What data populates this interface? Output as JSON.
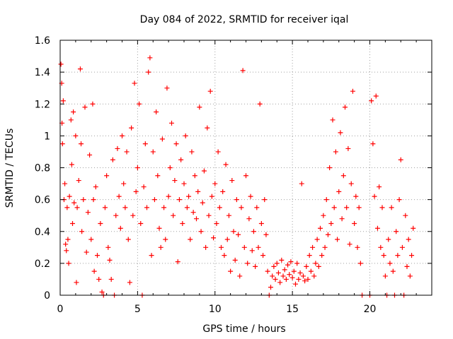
{
  "chart_data": {
    "type": "scatter",
    "title": "Day 084 of 2022, SRMTID for receiver iqal",
    "xlabel": "GPS time / hours",
    "ylabel": "SRMTID / TECUs",
    "xlim": [
      0,
      24
    ],
    "ylim": [
      0,
      1.6
    ],
    "grid": true,
    "marker": "+",
    "x_ticks": [
      0,
      5,
      10,
      15,
      20
    ],
    "x_tick_labels": [
      "0",
      "5",
      "10",
      "15",
      "20"
    ],
    "y_ticks": [
      0,
      0.2,
      0.4,
      0.6,
      0.8,
      1.0,
      1.2,
      1.4,
      1.6
    ],
    "y_tick_labels": [
      "0",
      "0.2",
      "0.4",
      "0.6",
      "0.8",
      "1",
      "1.2",
      "1.4",
      "1.6"
    ],
    "series": [
      {
        "name": "SRMTID",
        "color": "#ff0000",
        "points": [
          [
            0.05,
            1.45
          ],
          [
            0.1,
            1.33
          ],
          [
            0.12,
            1.08
          ],
          [
            0.15,
            0.95
          ],
          [
            0.2,
            1.22
          ],
          [
            0.25,
            0.6
          ],
          [
            0.3,
            0.7
          ],
          [
            0.35,
            0.32
          ],
          [
            0.4,
            0.28
          ],
          [
            0.45,
            0.55
          ],
          [
            0.5,
            0.35
          ],
          [
            0.55,
            0.2
          ],
          [
            0.6,
            0.62
          ],
          [
            0.7,
            1.1
          ],
          [
            0.75,
            0.82
          ],
          [
            0.8,
            0.45
          ],
          [
            0.85,
            1.15
          ],
          [
            0.9,
            0.58
          ],
          [
            1.0,
            1.0
          ],
          [
            1.05,
            0.08
          ],
          [
            1.1,
            0.55
          ],
          [
            1.2,
            0.72
          ],
          [
            1.3,
            1.42
          ],
          [
            1.35,
            0.95
          ],
          [
            1.4,
            0.4
          ],
          [
            1.5,
            0.6
          ],
          [
            1.6,
            1.18
          ],
          [
            1.7,
            0.27
          ],
          [
            1.8,
            0.52
          ],
          [
            1.9,
            0.88
          ],
          [
            2.0,
            0.35
          ],
          [
            2.1,
            1.2
          ],
          [
            2.15,
            0.6
          ],
          [
            2.2,
            0.15
          ],
          [
            2.3,
            0.68
          ],
          [
            2.4,
            0.25
          ],
          [
            2.5,
            0.1
          ],
          [
            2.6,
            0.45
          ],
          [
            2.7,
            0.02
          ],
          [
            2.8,
            0.0
          ],
          [
            2.9,
            0.55
          ],
          [
            3.0,
            0.75
          ],
          [
            3.1,
            0.3
          ],
          [
            3.2,
            0.22
          ],
          [
            3.3,
            0.1
          ],
          [
            3.4,
            0.85
          ],
          [
            3.5,
            0.0
          ],
          [
            3.6,
            0.5
          ],
          [
            3.7,
            0.92
          ],
          [
            3.8,
            0.62
          ],
          [
            3.9,
            0.42
          ],
          [
            4.0,
            1.0
          ],
          [
            4.1,
            0.7
          ],
          [
            4.2,
            0.55
          ],
          [
            4.3,
            0.9
          ],
          [
            4.4,
            0.35
          ],
          [
            4.5,
            0.08
          ],
          [
            4.6,
            1.05
          ],
          [
            4.7,
            0.5
          ],
          [
            4.8,
            1.33
          ],
          [
            4.9,
            0.65
          ],
          [
            5.0,
            0.8
          ],
          [
            5.1,
            1.2
          ],
          [
            5.2,
            0.45
          ],
          [
            5.3,
            0.0
          ],
          [
            5.4,
            0.68
          ],
          [
            5.5,
            0.95
          ],
          [
            5.6,
            0.55
          ],
          [
            5.7,
            1.4
          ],
          [
            5.8,
            1.49
          ],
          [
            5.9,
            0.25
          ],
          [
            6.0,
            0.9
          ],
          [
            6.1,
            0.6
          ],
          [
            6.2,
            1.15
          ],
          [
            6.3,
            0.75
          ],
          [
            6.4,
            0.42
          ],
          [
            6.5,
            0.3
          ],
          [
            6.6,
            0.98
          ],
          [
            6.7,
            0.55
          ],
          [
            6.8,
            0.35
          ],
          [
            6.9,
            1.3
          ],
          [
            7.0,
            0.62
          ],
          [
            7.1,
            0.8
          ],
          [
            7.2,
            1.08
          ],
          [
            7.3,
            0.5
          ],
          [
            7.4,
            0.72
          ],
          [
            7.5,
            0.95
          ],
          [
            7.6,
            0.21
          ],
          [
            7.7,
            0.6
          ],
          [
            7.8,
            0.85
          ],
          [
            7.9,
            0.45
          ],
          [
            8.0,
            0.7
          ],
          [
            8.1,
            1.0
          ],
          [
            8.2,
            0.55
          ],
          [
            8.3,
            0.62
          ],
          [
            8.4,
            0.35
          ],
          [
            8.5,
            0.9
          ],
          [
            8.6,
            0.52
          ],
          [
            8.7,
            0.75
          ],
          [
            8.8,
            0.48
          ],
          [
            8.9,
            0.65
          ],
          [
            9.0,
            1.18
          ],
          [
            9.1,
            0.4
          ],
          [
            9.2,
            0.58
          ],
          [
            9.3,
            0.78
          ],
          [
            9.4,
            0.3
          ],
          [
            9.5,
            1.05
          ],
          [
            9.6,
            0.5
          ],
          [
            9.7,
            1.28
          ],
          [
            9.8,
            0.62
          ],
          [
            9.9,
            0.36
          ],
          [
            10.0,
            0.7
          ],
          [
            10.1,
            0.45
          ],
          [
            10.2,
            0.9
          ],
          [
            10.3,
            0.55
          ],
          [
            10.4,
            0.3
          ],
          [
            10.5,
            0.65
          ],
          [
            10.6,
            0.25
          ],
          [
            10.7,
            0.82
          ],
          [
            10.8,
            0.35
          ],
          [
            10.9,
            0.5
          ],
          [
            11.0,
            0.15
          ],
          [
            11.1,
            0.72
          ],
          [
            11.2,
            0.4
          ],
          [
            11.3,
            0.22
          ],
          [
            11.4,
            0.6
          ],
          [
            11.5,
            0.38
          ],
          [
            11.6,
            0.12
          ],
          [
            11.7,
            0.55
          ],
          [
            11.8,
            1.41
          ],
          [
            11.9,
            0.3
          ],
          [
            12.0,
            0.75
          ],
          [
            12.1,
            0.2
          ],
          [
            12.2,
            0.48
          ],
          [
            12.3,
            0.62
          ],
          [
            12.4,
            0.28
          ],
          [
            12.5,
            0.4
          ],
          [
            12.6,
            0.18
          ],
          [
            12.7,
            0.55
          ],
          [
            12.8,
            0.3
          ],
          [
            12.9,
            1.2
          ],
          [
            13.0,
            0.45
          ],
          [
            13.1,
            0.25
          ],
          [
            13.2,
            0.6
          ],
          [
            13.3,
            0.38
          ],
          [
            13.4,
            0.15
          ],
          [
            13.5,
            0.0
          ],
          [
            13.6,
            0.05
          ],
          [
            13.7,
            0.12
          ],
          [
            13.8,
            0.18
          ],
          [
            13.9,
            0.1
          ],
          [
            14.0,
            0.2
          ],
          [
            14.1,
            0.14
          ],
          [
            14.2,
            0.08
          ],
          [
            14.3,
            0.22
          ],
          [
            14.4,
            0.12
          ],
          [
            14.5,
            0.16
          ],
          [
            14.6,
            0.1
          ],
          [
            14.7,
            0.19
          ],
          [
            14.8,
            0.13
          ],
          [
            14.9,
            0.21
          ],
          [
            15.0,
            0.11
          ],
          [
            15.1,
            0.15
          ],
          [
            15.2,
            0.07
          ],
          [
            15.3,
            0.2
          ],
          [
            15.4,
            0.1
          ],
          [
            15.5,
            0.14
          ],
          [
            15.6,
            0.7
          ],
          [
            15.7,
            0.12
          ],
          [
            15.8,
            0.09
          ],
          [
            15.9,
            0.18
          ],
          [
            16.0,
            0.1
          ],
          [
            16.1,
            0.25
          ],
          [
            16.2,
            0.15
          ],
          [
            16.3,
            0.3
          ],
          [
            16.4,
            0.12
          ],
          [
            16.5,
            0.2
          ],
          [
            16.6,
            0.35
          ],
          [
            16.7,
            0.18
          ],
          [
            16.8,
            0.42
          ],
          [
            16.9,
            0.25
          ],
          [
            17.0,
            0.5
          ],
          [
            17.1,
            0.3
          ],
          [
            17.2,
            0.6
          ],
          [
            17.3,
            0.38
          ],
          [
            17.4,
            0.8
          ],
          [
            17.5,
            0.45
          ],
          [
            17.6,
            1.1
          ],
          [
            17.7,
            0.55
          ],
          [
            17.8,
            0.9
          ],
          [
            17.9,
            0.35
          ],
          [
            18.0,
            0.65
          ],
          [
            18.1,
            1.02
          ],
          [
            18.2,
            0.48
          ],
          [
            18.3,
            0.75
          ],
          [
            18.4,
            1.18
          ],
          [
            18.5,
            0.55
          ],
          [
            18.6,
            0.92
          ],
          [
            18.7,
            0.32
          ],
          [
            18.8,
            0.7
          ],
          [
            18.9,
            1.28
          ],
          [
            19.0,
            0.45
          ],
          [
            19.1,
            0.62
          ],
          [
            19.2,
            0.3
          ],
          [
            19.3,
            0.55
          ],
          [
            19.4,
            0.2
          ],
          [
            19.5,
            0.0
          ],
          [
            20.0,
            0.0
          ],
          [
            20.1,
            1.22
          ],
          [
            20.2,
            0.95
          ],
          [
            20.3,
            0.62
          ],
          [
            20.4,
            1.25
          ],
          [
            20.5,
            0.42
          ],
          [
            20.6,
            0.68
          ],
          [
            20.7,
            0.3
          ],
          [
            20.8,
            0.55
          ],
          [
            20.9,
            0.25
          ],
          [
            21.0,
            0.12
          ],
          [
            21.1,
            0.0
          ],
          [
            21.2,
            0.35
          ],
          [
            21.3,
            0.2
          ],
          [
            21.4,
            0.55
          ],
          [
            21.5,
            0.15
          ],
          [
            21.6,
            0.0
          ],
          [
            21.7,
            0.4
          ],
          [
            21.8,
            0.25
          ],
          [
            21.9,
            0.6
          ],
          [
            22.0,
            0.85
          ],
          [
            22.1,
            0.3
          ],
          [
            22.2,
            0.0
          ],
          [
            22.3,
            0.5
          ],
          [
            22.4,
            0.18
          ],
          [
            22.5,
            0.35
          ],
          [
            22.6,
            0.12
          ],
          [
            22.7,
            0.25
          ],
          [
            22.8,
            0.42
          ]
        ]
      }
    ]
  }
}
